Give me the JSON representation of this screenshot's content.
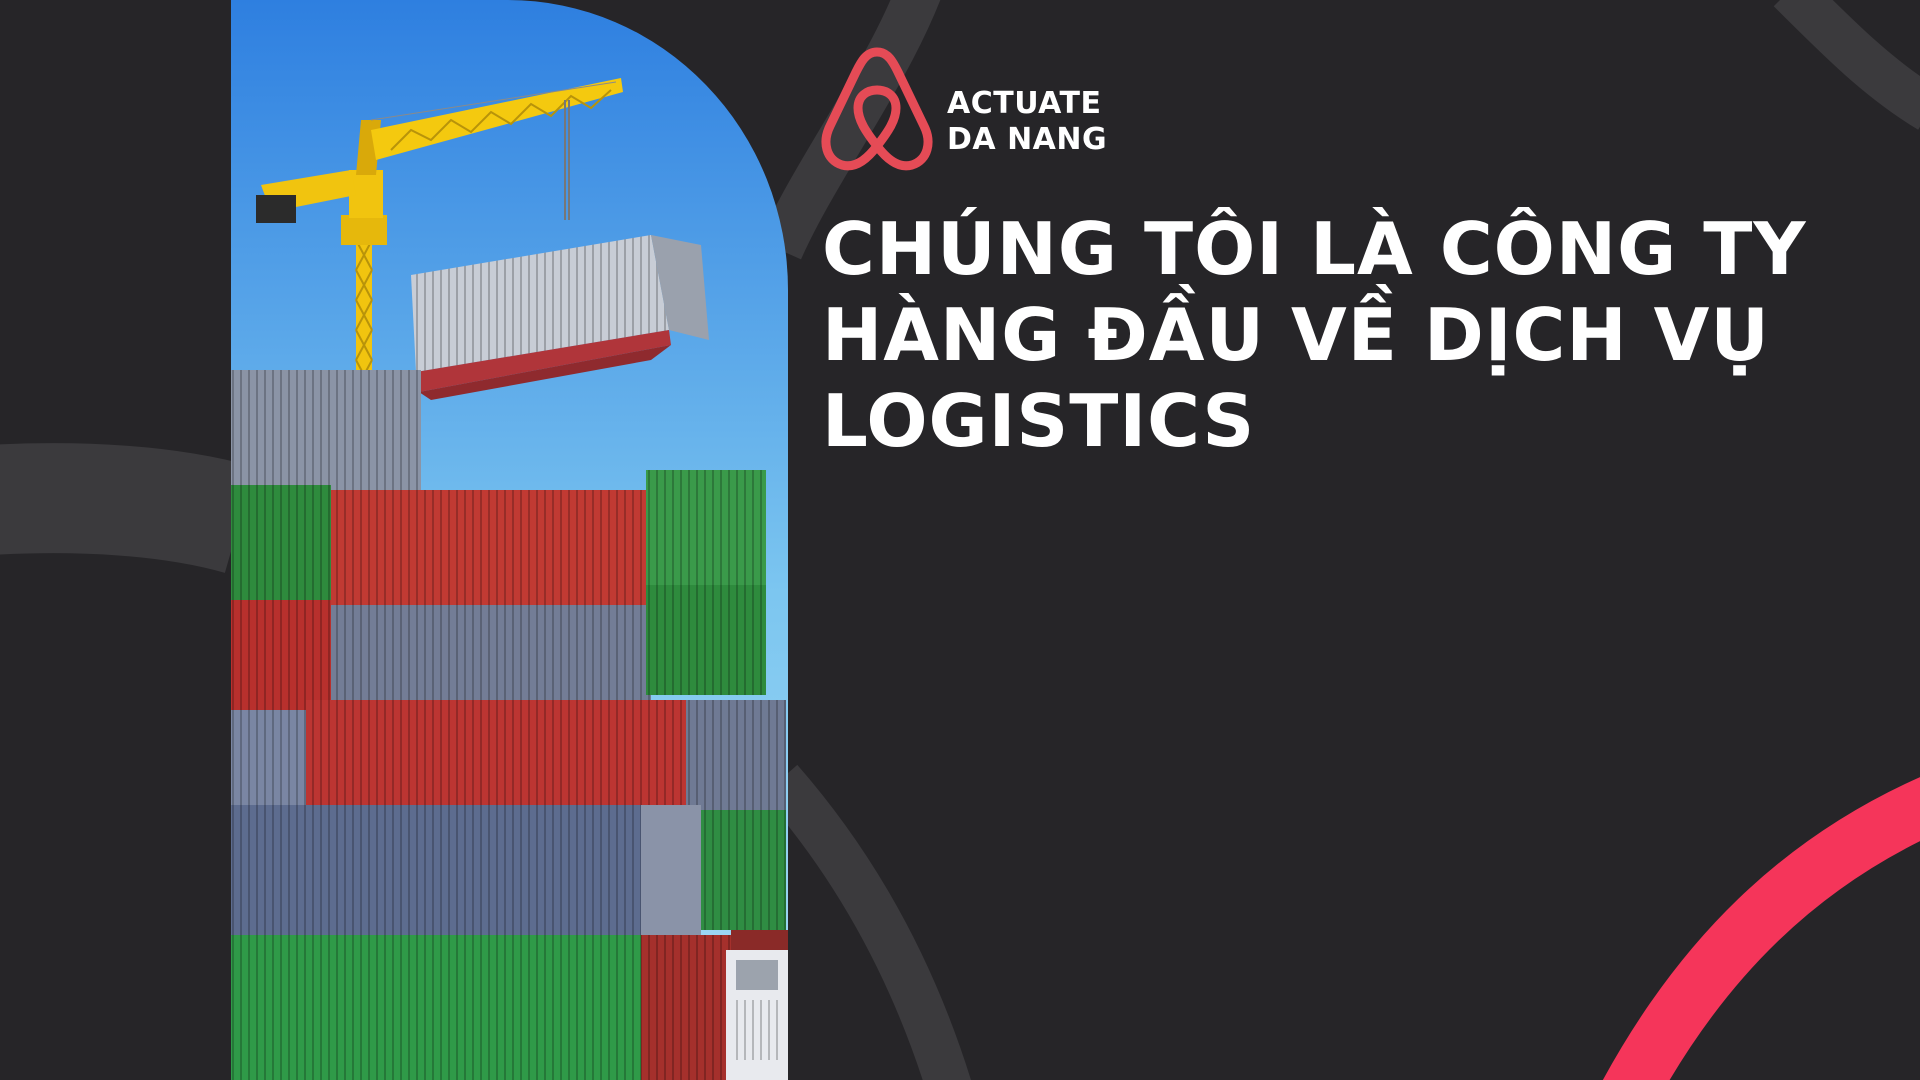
{
  "brand": {
    "line1": "ACTUATE",
    "line2": "DA NANG",
    "logo_color": "#e54b56",
    "logo_icon": "airbnb-belo-icon"
  },
  "headline": {
    "line1": "CHÚNG TÔI LÀ CÔNG TY",
    "line2": "HÀNG ĐẦU VỀ DỊCH VỤ",
    "line3": "LOGISTICS"
  },
  "colors": {
    "background": "#262528",
    "arc_gray": "#3b3a3d",
    "accent_arc": "#f5355a",
    "text": "#ffffff"
  }
}
